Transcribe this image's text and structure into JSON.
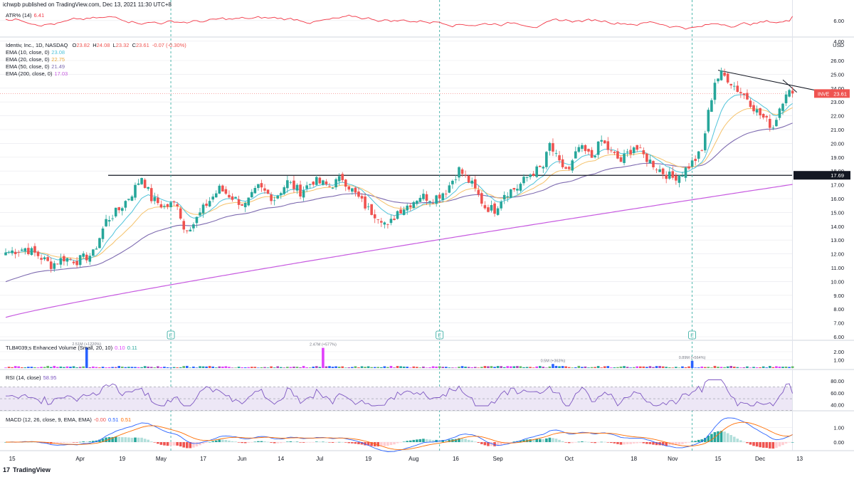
{
  "header": {
    "published": "ichwpb published on TradingView.com, Dec 13, 2021 11:30 UTC+8"
  },
  "footer": {
    "brand": "TradingView",
    "logo_glyph": "17"
  },
  "colors": {
    "up": "#26a69a",
    "down": "#ef5350",
    "atr": "#f23645",
    "ema10": "#4fc3d9",
    "ema20": "#f5c26b",
    "ema50": "#7e6bb0",
    "ema200": "#c75be0",
    "rsi": "#7e57c2",
    "rsi_band": "#ede7f6",
    "macd": "#2962ff",
    "signal": "#ff6d00",
    "grid": "#e8e8ee",
    "axis_text": "#131722",
    "level_badge": "#131722"
  },
  "atr": {
    "label": "ATR% (14)",
    "value": "6.41",
    "ticks": [
      "6.00",
      "4.00"
    ]
  },
  "main": {
    "legend_title": "Identiv, Inc., 1D, NASDAQ",
    "ohlc": {
      "o_label": "O",
      "o": "23.82",
      "h_label": "H",
      "h": "24.08",
      "l_label": "L",
      "l": "23.32",
      "c_label": "C",
      "c": "23.61",
      "chg": "-0.07 (-0.30%)"
    },
    "emas": [
      {
        "label": "EMA (10, close, 0)",
        "value": "23.08"
      },
      {
        "label": "EMA (20, close, 0)",
        "value": "22.75"
      },
      {
        "label": "EMA (50, close, 0)",
        "value": "21.49"
      },
      {
        "label": "EMA (200, close, 0)",
        "value": "17.03"
      }
    ],
    "currency": "USD",
    "price_ticks": [
      "26.00",
      "25.00",
      "24.00",
      "23.00",
      "22.00",
      "21.00",
      "20.00",
      "19.00",
      "18.00",
      "17.00",
      "16.00",
      "15.00",
      "14.00",
      "13.00",
      "12.00",
      "11.00",
      "10.00",
      "9.00",
      "8.00",
      "7.00",
      "6.00"
    ],
    "last_price_badge": {
      "symbol": "INVE",
      "value": "23.61"
    },
    "level_badge": "17.69",
    "earnings_marker": "E"
  },
  "volume": {
    "label": "TLB#039;s Enhanced Volume (Small, 20, 10)",
    "values": [
      "0.10",
      "0.11"
    ],
    "ticks": [
      "2.00",
      "1.00"
    ],
    "annotations": [
      "2.51M (+1220%)",
      "2.47M (+577%)",
      "0.5M (+363%)",
      "0.89M (+564%)"
    ]
  },
  "rsi": {
    "label": "RSI (14, close)",
    "value": "58.95",
    "ticks": [
      "80.00",
      "60.00",
      "40.00"
    ]
  },
  "macd": {
    "label": "MACD (12, 26, close, 9, EMA, EMA)",
    "values": [
      "-0.00",
      "0.51",
      "0.51"
    ],
    "ticks": [
      "1.00",
      "0.00"
    ]
  },
  "time_axis": [
    "15",
    "Apr",
    "19",
    "May",
    "17",
    "Jun",
    "14",
    "Jul",
    "19",
    "Aug",
    "16",
    "Sep",
    "Oct",
    "18",
    "Nov",
    "15",
    "Dec",
    "13"
  ],
  "chart_data": {
    "type": "candlestick",
    "symbol": "INVE",
    "timeframe": "1D",
    "ylim": [
      6,
      26
    ],
    "anchors": [
      [
        0,
        12.1
      ],
      [
        6,
        12.4
      ],
      [
        10,
        11.9
      ],
      [
        14,
        11.2
      ],
      [
        18,
        11.7
      ],
      [
        22,
        11.5
      ],
      [
        27,
        12.0
      ],
      [
        31,
        14.4
      ],
      [
        35,
        15.2
      ],
      [
        39,
        16.4
      ],
      [
        42,
        17.6
      ],
      [
        45,
        16.0
      ],
      [
        49,
        15.4
      ],
      [
        53,
        15.7
      ],
      [
        55,
        13.8
      ],
      [
        58,
        14.2
      ],
      [
        62,
        15.6
      ],
      [
        66,
        16.7
      ],
      [
        70,
        16.1
      ],
      [
        74,
        15.5
      ],
      [
        78,
        16.8
      ],
      [
        83,
        16.0
      ],
      [
        87,
        17.2
      ],
      [
        91,
        16.5
      ],
      [
        95,
        17.3
      ],
      [
        100,
        16.9
      ],
      [
        104,
        17.5
      ],
      [
        108,
        16.3
      ],
      [
        112,
        15.2
      ],
      [
        116,
        14.6
      ],
      [
        118,
        13.9
      ],
      [
        121,
        15.1
      ],
      [
        124,
        15.5
      ],
      [
        128,
        16.2
      ],
      [
        132,
        16.0
      ],
      [
        136,
        16.6
      ],
      [
        140,
        18.1
      ],
      [
        144,
        17.0
      ],
      [
        148,
        15.4
      ],
      [
        151,
        15.2
      ],
      [
        154,
        16.4
      ],
      [
        158,
        16.8
      ],
      [
        162,
        17.8
      ],
      [
        166,
        18.3
      ],
      [
        168,
        19.9
      ],
      [
        171,
        18.5
      ],
      [
        174,
        18.0
      ],
      [
        177,
        19.7
      ],
      [
        181,
        19.0
      ],
      [
        184,
        20.2
      ],
      [
        187,
        19.3
      ],
      [
        190,
        18.7
      ],
      [
        194,
        19.8
      ],
      [
        197,
        19.1
      ],
      [
        200,
        18.5
      ],
      [
        203,
        17.9
      ],
      [
        206,
        17.5
      ],
      [
        209,
        17.9
      ],
      [
        212,
        18.6
      ],
      [
        215,
        19.4
      ],
      [
        217,
        22.2
      ],
      [
        219,
        24.5
      ],
      [
        221,
        25.0
      ],
      [
        223,
        24.7
      ],
      [
        226,
        23.9
      ],
      [
        229,
        23.3
      ],
      [
        232,
        22.3
      ],
      [
        235,
        21.6
      ],
      [
        237,
        21.2
      ],
      [
        239,
        22.6
      ],
      [
        241,
        23.8
      ],
      [
        243,
        23.61
      ]
    ],
    "last_ohlc": {
      "open": 23.82,
      "high": 24.08,
      "low": 23.32,
      "close": 23.61
    },
    "ema_last": {
      "ema10": 23.08,
      "ema20": 22.75,
      "ema50": 21.49,
      "ema200": 17.03
    },
    "ema200_start": 7.4,
    "ema50_start": 9.9,
    "horizontal_level": 17.69,
    "trendline": [
      [
        220,
        25.3
      ],
      [
        243,
        23.8
      ]
    ],
    "earnings_bars": [
      51,
      134,
      212
    ],
    "volume_spikes": [
      [
        25,
        2.51
      ],
      [
        98,
        2.47
      ],
      [
        169,
        0.5
      ],
      [
        212,
        0.89
      ]
    ],
    "rsi_last": 58.95,
    "macd_last": {
      "macd": 0.51,
      "signal": 0.51,
      "hist": -0.0
    },
    "atr_last": 6.41
  }
}
